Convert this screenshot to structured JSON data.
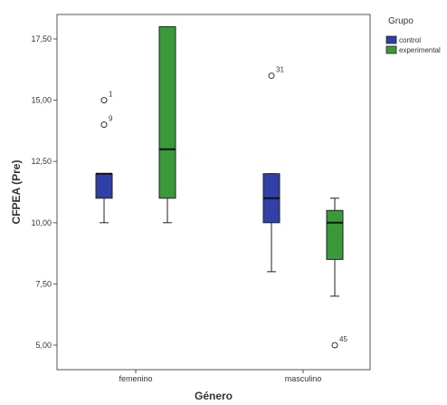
{
  "chart_data": {
    "type": "box",
    "xlabel": "Género",
    "ylabel": "CFPEA (Pre)",
    "categories": [
      "femenino",
      "masculino"
    ],
    "ylim": [
      4.0,
      18.5
    ],
    "yticks": [
      5.0,
      7.5,
      10.0,
      12.5,
      15.0,
      17.5
    ],
    "ytick_labels": [
      "5,00",
      "7,50",
      "10,00",
      "12,50",
      "15,00",
      "17,50"
    ],
    "grid": false,
    "legend": {
      "title": "Grupo",
      "placement": "top-right",
      "entries": [
        {
          "label": "control",
          "color": "#3040a8"
        },
        {
          "label": "experimental",
          "color": "#3a9a3a"
        }
      ]
    },
    "series": [
      {
        "name": "control",
        "color": "#3040a8",
        "boxes": [
          {
            "category": "femenino",
            "whisker_low": 10.0,
            "q1": 11.0,
            "median": 12.0,
            "q3": 12.0,
            "whisker_high": 12.0,
            "outliers": [
              {
                "value": 15.0,
                "label": "1"
              },
              {
                "value": 14.0,
                "label": "9"
              }
            ]
          },
          {
            "category": "masculino",
            "whisker_low": 8.0,
            "q1": 10.0,
            "median": 11.0,
            "q3": 12.0,
            "whisker_high": 12.0,
            "outliers": [
              {
                "value": 16.0,
                "label": "31"
              }
            ]
          }
        ]
      },
      {
        "name": "experimental",
        "color": "#3a9a3a",
        "boxes": [
          {
            "category": "femenino",
            "whisker_low": 10.0,
            "q1": 11.0,
            "median": 13.0,
            "q3": 18.0,
            "whisker_high": 18.0,
            "outliers": []
          },
          {
            "category": "masculino",
            "whisker_low": 7.0,
            "q1": 8.5,
            "median": 10.0,
            "q3": 10.5,
            "whisker_high": 11.0,
            "outliers": [
              {
                "value": 5.0,
                "label": "45"
              }
            ]
          }
        ]
      }
    ]
  }
}
